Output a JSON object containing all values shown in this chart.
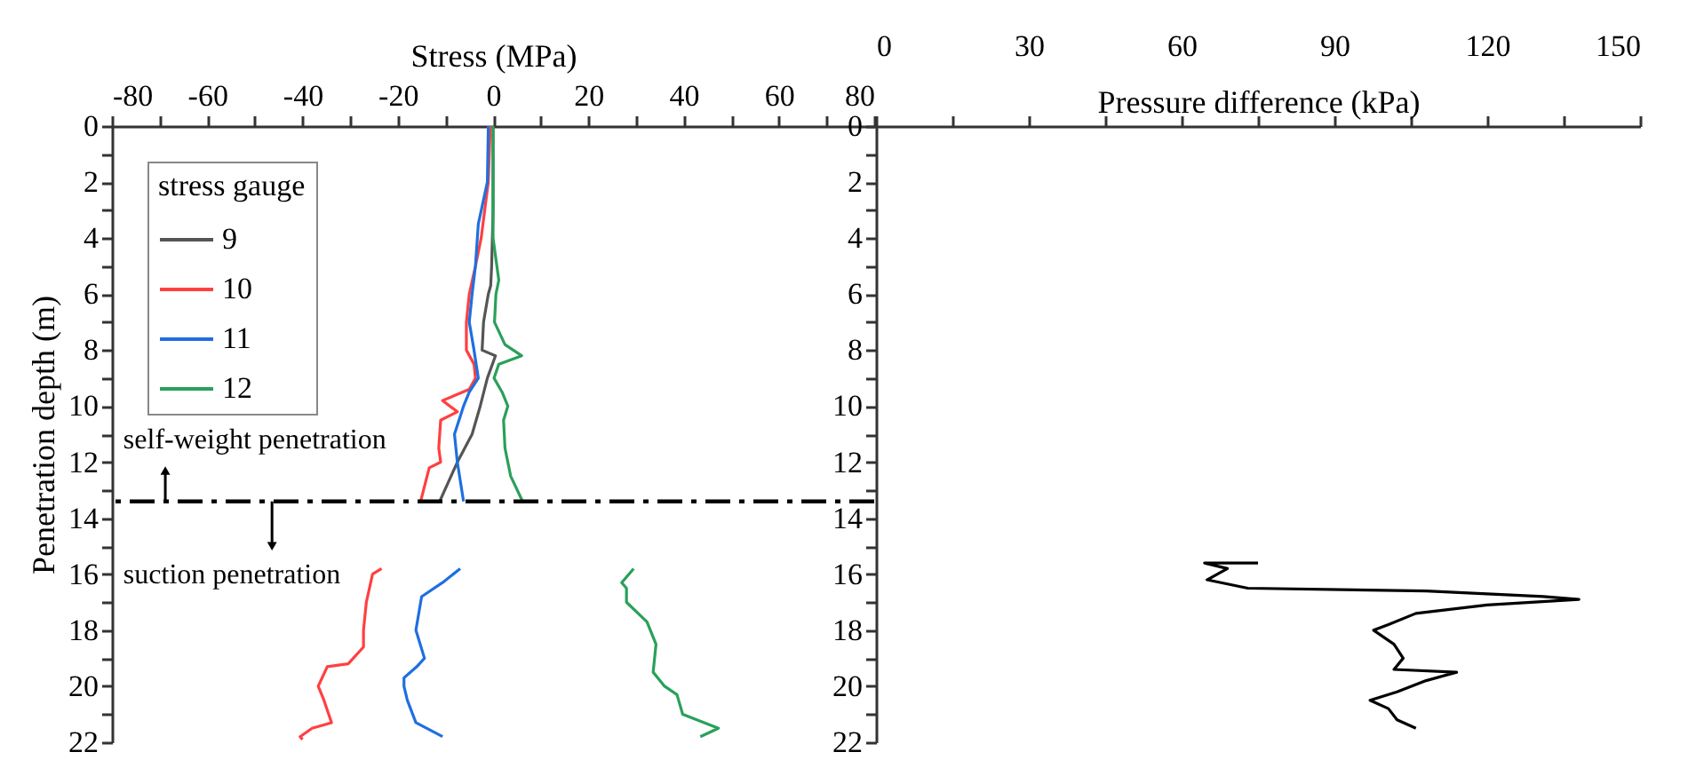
{
  "chart_data": [
    {
      "type": "line",
      "xlabel": "Stress (MPa)",
      "ylabel": "Penetration depth (m)",
      "legend_title": "stress gauge",
      "legend": "top left",
      "xlim": [
        -80,
        80
      ],
      "xticks": [
        -80,
        {
          "value": -70,
          "label": null
        },
        -60,
        {
          "value": -50,
          "label": null
        },
        -40,
        {
          "value": -30,
          "label": null
        },
        -20,
        {
          "value": -10,
          "label": null
        },
        0,
        {
          "value": 10,
          "label": null
        },
        20,
        {
          "value": 30,
          "label": null
        },
        40,
        {
          "value": 50,
          "label": null
        },
        60,
        {
          "value": 70,
          "label": null
        },
        80
      ],
      "ylim": [
        22,
        0
      ],
      "yticks": [
        0,
        {
          "value": 1,
          "label": null
        },
        2,
        {
          "value": 3,
          "label": null
        },
        4,
        {
          "value": 5,
          "label": null
        },
        6,
        {
          "value": 7,
          "label": null
        },
        8,
        {
          "value": 9,
          "label": null
        },
        10,
        {
          "value": 11,
          "label": null
        },
        12,
        {
          "value": 13,
          "label": null
        },
        14,
        {
          "value": 15,
          "label": null
        },
        16,
        {
          "value": 17,
          "label": null
        },
        18,
        {
          "value": 19,
          "label": null
        },
        20,
        {
          "value": 21,
          "label": null
        },
        22
      ],
      "series": [
        {
          "name": "9",
          "color": "#555555",
          "x": [
            0,
            0,
            -0.3,
            -0.5,
            -1,
            -2,
            -2.3,
            0.5,
            -1.2,
            -2.7,
            -4.4,
            -7.5,
            -11.2
          ],
          "values": [
            0,
            3,
            5,
            5.7,
            6,
            7,
            8,
            8.2,
            9,
            10,
            11,
            12,
            13.4
          ]
        },
        {
          "name": "10",
          "color": "#ff4040",
          "x": [
            -0.6,
            -1,
            -2.5,
            -3.7,
            -5,
            -5.6,
            -5.6,
            -4,
            -3.7,
            -5,
            -10.6,
            -7.5,
            -11,
            -11.4,
            -11,
            -13.4,
            -15.2,
            null,
            -23.4,
            -25.3,
            -26.6,
            -27.2,
            -27.2,
            -30.4,
            -34.8,
            -36.7,
            -35.5,
            -33.9,
            -38,
            -40.5,
            -40
          ],
          "values": [
            0,
            2,
            4,
            5,
            6,
            7,
            8,
            8.5,
            9,
            9.4,
            9.8,
            10.2,
            10.5,
            11.5,
            12,
            12.2,
            13.4,
            null,
            15.8,
            16,
            17,
            18,
            18.6,
            19.2,
            19.3,
            20,
            20.5,
            21.3,
            21.5,
            21.8,
            21.9
          ]
        },
        {
          "name": "11",
          "color": "#1f6fe0",
          "x": [
            -1,
            -1.2,
            -3.1,
            -3.7,
            -4.4,
            -5,
            -4,
            -3.1,
            -5,
            -6.2,
            -8.1,
            -7.5,
            -6.2,
            null,
            -6.9,
            -10.6,
            -15,
            -16.2,
            -14.4,
            -16,
            -18.7,
            -18.7,
            -18,
            -16.2,
            -10.6
          ],
          "values": [
            0,
            2,
            3.5,
            5,
            6,
            7,
            8,
            9,
            9.5,
            10,
            11,
            12,
            13.4,
            null,
            15.8,
            16.3,
            16.8,
            18,
            19,
            19.3,
            19.7,
            20,
            20.5,
            21.3,
            21.8
          ]
        },
        {
          "name": "12",
          "color": "#2aa05a",
          "x": [
            0,
            0,
            1.2,
            0.6,
            0.3,
            2.5,
            6,
            1.2,
            0.2,
            1.9,
            3.1,
            2.2,
            2.5,
            3.7,
            6.2,
            null,
            29.5,
            27,
            28,
            28,
            32.3,
            34.2,
            33.6,
            36,
            38.6,
            39.8,
            47.3,
            43.5
          ],
          "values": [
            0,
            4,
            5.5,
            6,
            7,
            7.8,
            8.2,
            8.5,
            9,
            9.5,
            10,
            10.5,
            11.5,
            12.5,
            13.4,
            null,
            15.8,
            16.3,
            16.5,
            17,
            17.7,
            18.5,
            19.5,
            20,
            20.3,
            21,
            21.5,
            21.8
          ]
        }
      ],
      "ref_lines": [
        {
          "axis": "y",
          "value": 13.4,
          "color": "#000000",
          "line_style": "dashed"
        }
      ],
      "annotations": [
        "self-weight penetration",
        "suction penetration"
      ]
    },
    {
      "type": "line",
      "xlabel": "Pressure difference (kPa)",
      "xlim": [
        0,
        150
      ],
      "xticks": [
        0,
        {
          "value": 15,
          "label": null
        },
        30,
        {
          "value": 45,
          "label": null
        },
        60,
        {
          "value": 75,
          "label": null
        },
        90,
        {
          "value": 105,
          "label": null
        },
        120,
        {
          "value": 135,
          "label": null
        },
        150
      ],
      "ylim": [
        22,
        0
      ],
      "yticks": [
        0,
        {
          "value": 1,
          "label": null
        },
        2,
        {
          "value": 3,
          "label": null
        },
        4,
        {
          "value": 5,
          "label": null
        },
        6,
        {
          "value": 7,
          "label": null
        },
        8,
        {
          "value": 9,
          "label": null
        },
        10,
        {
          "value": 11,
          "label": null
        },
        12,
        {
          "value": 13,
          "label": null
        },
        14,
        {
          "value": 15,
          "label": null
        },
        16,
        {
          "value": 17,
          "label": null
        },
        18,
        {
          "value": 19,
          "label": null
        },
        20,
        {
          "value": 21,
          "label": null
        },
        22
      ],
      "series": [
        {
          "color": "#000000",
          "x": [
            75,
            64.5,
            69,
            65,
            73,
            108,
            131,
            138,
            120,
            106,
            100.6,
            97.7,
            101.7,
            103.5,
            101.7,
            114,
            108,
            102.3,
            97,
            100.6,
            102.3,
            106
          ],
          "values": [
            15.6,
            15.6,
            15.8,
            16.2,
            16.5,
            16.6,
            16.8,
            16.9,
            17.1,
            17.4,
            17.8,
            18,
            18.5,
            19,
            19.4,
            19.5,
            19.8,
            20.2,
            20.5,
            20.8,
            21.2,
            21.5
          ]
        }
      ]
    }
  ]
}
